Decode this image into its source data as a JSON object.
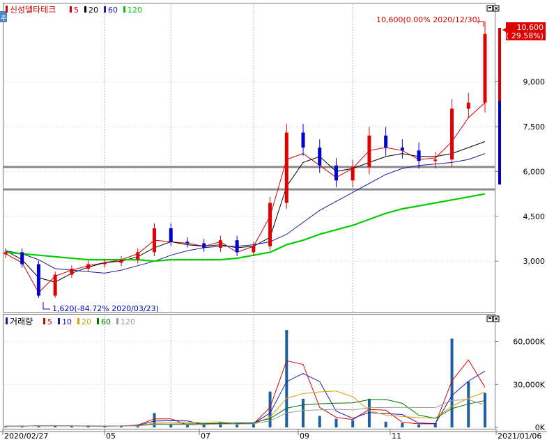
{
  "price_panel": {
    "legend_name": "신성델타테크",
    "ma_legend": [
      {
        "label": "5",
        "color": "#d40000"
      },
      {
        "label": "20",
        "color": "#000000"
      },
      {
        "label": "60",
        "color": "#1a1aaa"
      },
      {
        "label": "120",
        "color": "#00cc00"
      }
    ],
    "high_annotation": "10,600(0.00% 2020/12/30)",
    "low_annotation": "1,620(-84.72% 2020/03/23)",
    "current_price": "10,600",
    "current_change": "( 29.58%)",
    "side_tab": "주"
  },
  "volume_panel": {
    "legend_name": "거래량",
    "ma_legend": [
      {
        "label": "5",
        "color": "#d40000"
      },
      {
        "label": "10",
        "color": "#1a1aaa"
      },
      {
        "label": "20",
        "color": "#e09a00"
      },
      {
        "label": "60",
        "color": "#007700"
      },
      {
        "label": "120",
        "color": "#999999"
      }
    ]
  },
  "x_labels": [
    "2020/02/27",
    "05",
    "07",
    "09",
    "11",
    "2021/01/06"
  ],
  "colors": {
    "up": "#e00000",
    "down": "#0000cc",
    "ma5": "#d40000",
    "ma20": "#000000",
    "ma60": "#1a1aaa",
    "ma120": "#00cc00",
    "hline": "#8a8a8a",
    "volume": "#1f5fa0"
  },
  "chart_data": [
    {
      "type": "candlestick",
      "title": "신성델타테크",
      "xlabel": "",
      "ylabel": "",
      "x": [
        "2020/02/27",
        "2020/03/09",
        "2020/03/23",
        "2020/04/06",
        "2020/04/20",
        "2020/05/04",
        "2020/05/18",
        "2020/06/01",
        "2020/06/15",
        "2020/06/26",
        "2020/07/10",
        "2020/07/24",
        "2020/08/07",
        "2020/08/21",
        "2020/09/04",
        "2020/09/16",
        "2020/09/21",
        "2020/09/25",
        "2020/10/05",
        "2020/10/16",
        "2020/10/30",
        "2020/11/06",
        "2020/11/13",
        "2020/11/20",
        "2020/12/04",
        "2020/12/14",
        "2020/12/18",
        "2020/12/24",
        "2020/12/28",
        "2020/12/30"
      ],
      "close": [
        3300,
        2900,
        1850,
        2550,
        2750,
        2900,
        2950,
        3050,
        3300,
        4100,
        3650,
        3600,
        3450,
        3700,
        3300,
        3500,
        4950,
        7300,
        6800,
        6200,
        5700,
        6150,
        7200,
        6800,
        6700,
        6350,
        6400,
        8100,
        8300,
        10600
      ],
      "series": [
        {
          "name": "5",
          "values": [
            3250,
            2950,
            1950,
            2500,
            2700,
            2850,
            2950,
            3050,
            3250,
            3700,
            3650,
            3600,
            3500,
            3650,
            3300,
            3500,
            4500,
            6400,
            6600,
            6200,
            5800,
            6100,
            6700,
            6800,
            6700,
            6400,
            6450,
            7000,
            7800,
            8300
          ]
        },
        {
          "name": "20",
          "values": [
            3350,
            3050,
            2450,
            2300,
            2600,
            2800,
            2950,
            3000,
            3150,
            3450,
            3650,
            3550,
            3500,
            3550,
            3450,
            3500,
            3800,
            5500,
            6300,
            6500,
            6000,
            6100,
            6300,
            6500,
            6600,
            6500,
            6500,
            6600,
            6800,
            7000
          ]
        },
        {
          "name": "60",
          "values": [
            3350,
            3250,
            3050,
            2750,
            2700,
            2650,
            2600,
            2700,
            2850,
            3000,
            3200,
            3350,
            3450,
            3500,
            3500,
            3550,
            3650,
            3900,
            4300,
            4700,
            5000,
            5300,
            5600,
            5900,
            6100,
            6200,
            6250,
            6300,
            6400,
            6600
          ]
        },
        {
          "name": "120",
          "values": [
            3300,
            3250,
            3200,
            3150,
            3100,
            3050,
            3050,
            3050,
            3050,
            3000,
            3050,
            3050,
            3050,
            3050,
            3100,
            3200,
            3300,
            3550,
            3700,
            3900,
            4050,
            4200,
            4400,
            4600,
            4750,
            4850,
            4950,
            5050,
            5150,
            5250
          ]
        }
      ],
      "horizontal_lines": [
        6150,
        5400
      ],
      "yticks": [
        3000,
        4500,
        6000,
        7500,
        9000
      ],
      "ytick_labels": [
        "3,000",
        "4,500",
        "6,000",
        "7,500",
        "9,000"
      ],
      "ylim": [
        1400,
        11500
      ],
      "high": 10600,
      "low": 1620
    },
    {
      "type": "bar",
      "title": "거래량",
      "xlabel": "",
      "ylabel": "",
      "x": [
        "2020/02/27",
        "2020/03/09",
        "2020/03/23",
        "2020/04/06",
        "2020/04/20",
        "2020/05/04",
        "2020/05/18",
        "2020/06/01",
        "2020/06/15",
        "2020/06/26",
        "2020/07/10",
        "2020/07/24",
        "2020/08/07",
        "2020/08/21",
        "2020/09/04",
        "2020/09/16",
        "2020/09/21",
        "2020/09/25",
        "2020/10/05",
        "2020/10/16",
        "2020/10/30",
        "2020/11/06",
        "2020/11/13",
        "2020/11/20",
        "2020/12/04",
        "2020/12/14",
        "2020/12/18",
        "2020/12/24",
        "2020/12/28",
        "2020/12/30"
      ],
      "values": [
        800,
        900,
        1500,
        1000,
        900,
        900,
        800,
        1200,
        2000,
        10000,
        2000,
        1500,
        2500,
        3500,
        2000,
        3000,
        25000,
        68000,
        20000,
        8000,
        6000,
        5000,
        20000,
        4000,
        3000,
        2000,
        3000,
        62000,
        32000,
        24000
      ],
      "yticks": [
        0,
        30000,
        60000
      ],
      "ytick_labels": [
        "0K",
        "30,000K",
        "60,000K"
      ],
      "ylim": [
        0,
        70000
      ]
    }
  ]
}
